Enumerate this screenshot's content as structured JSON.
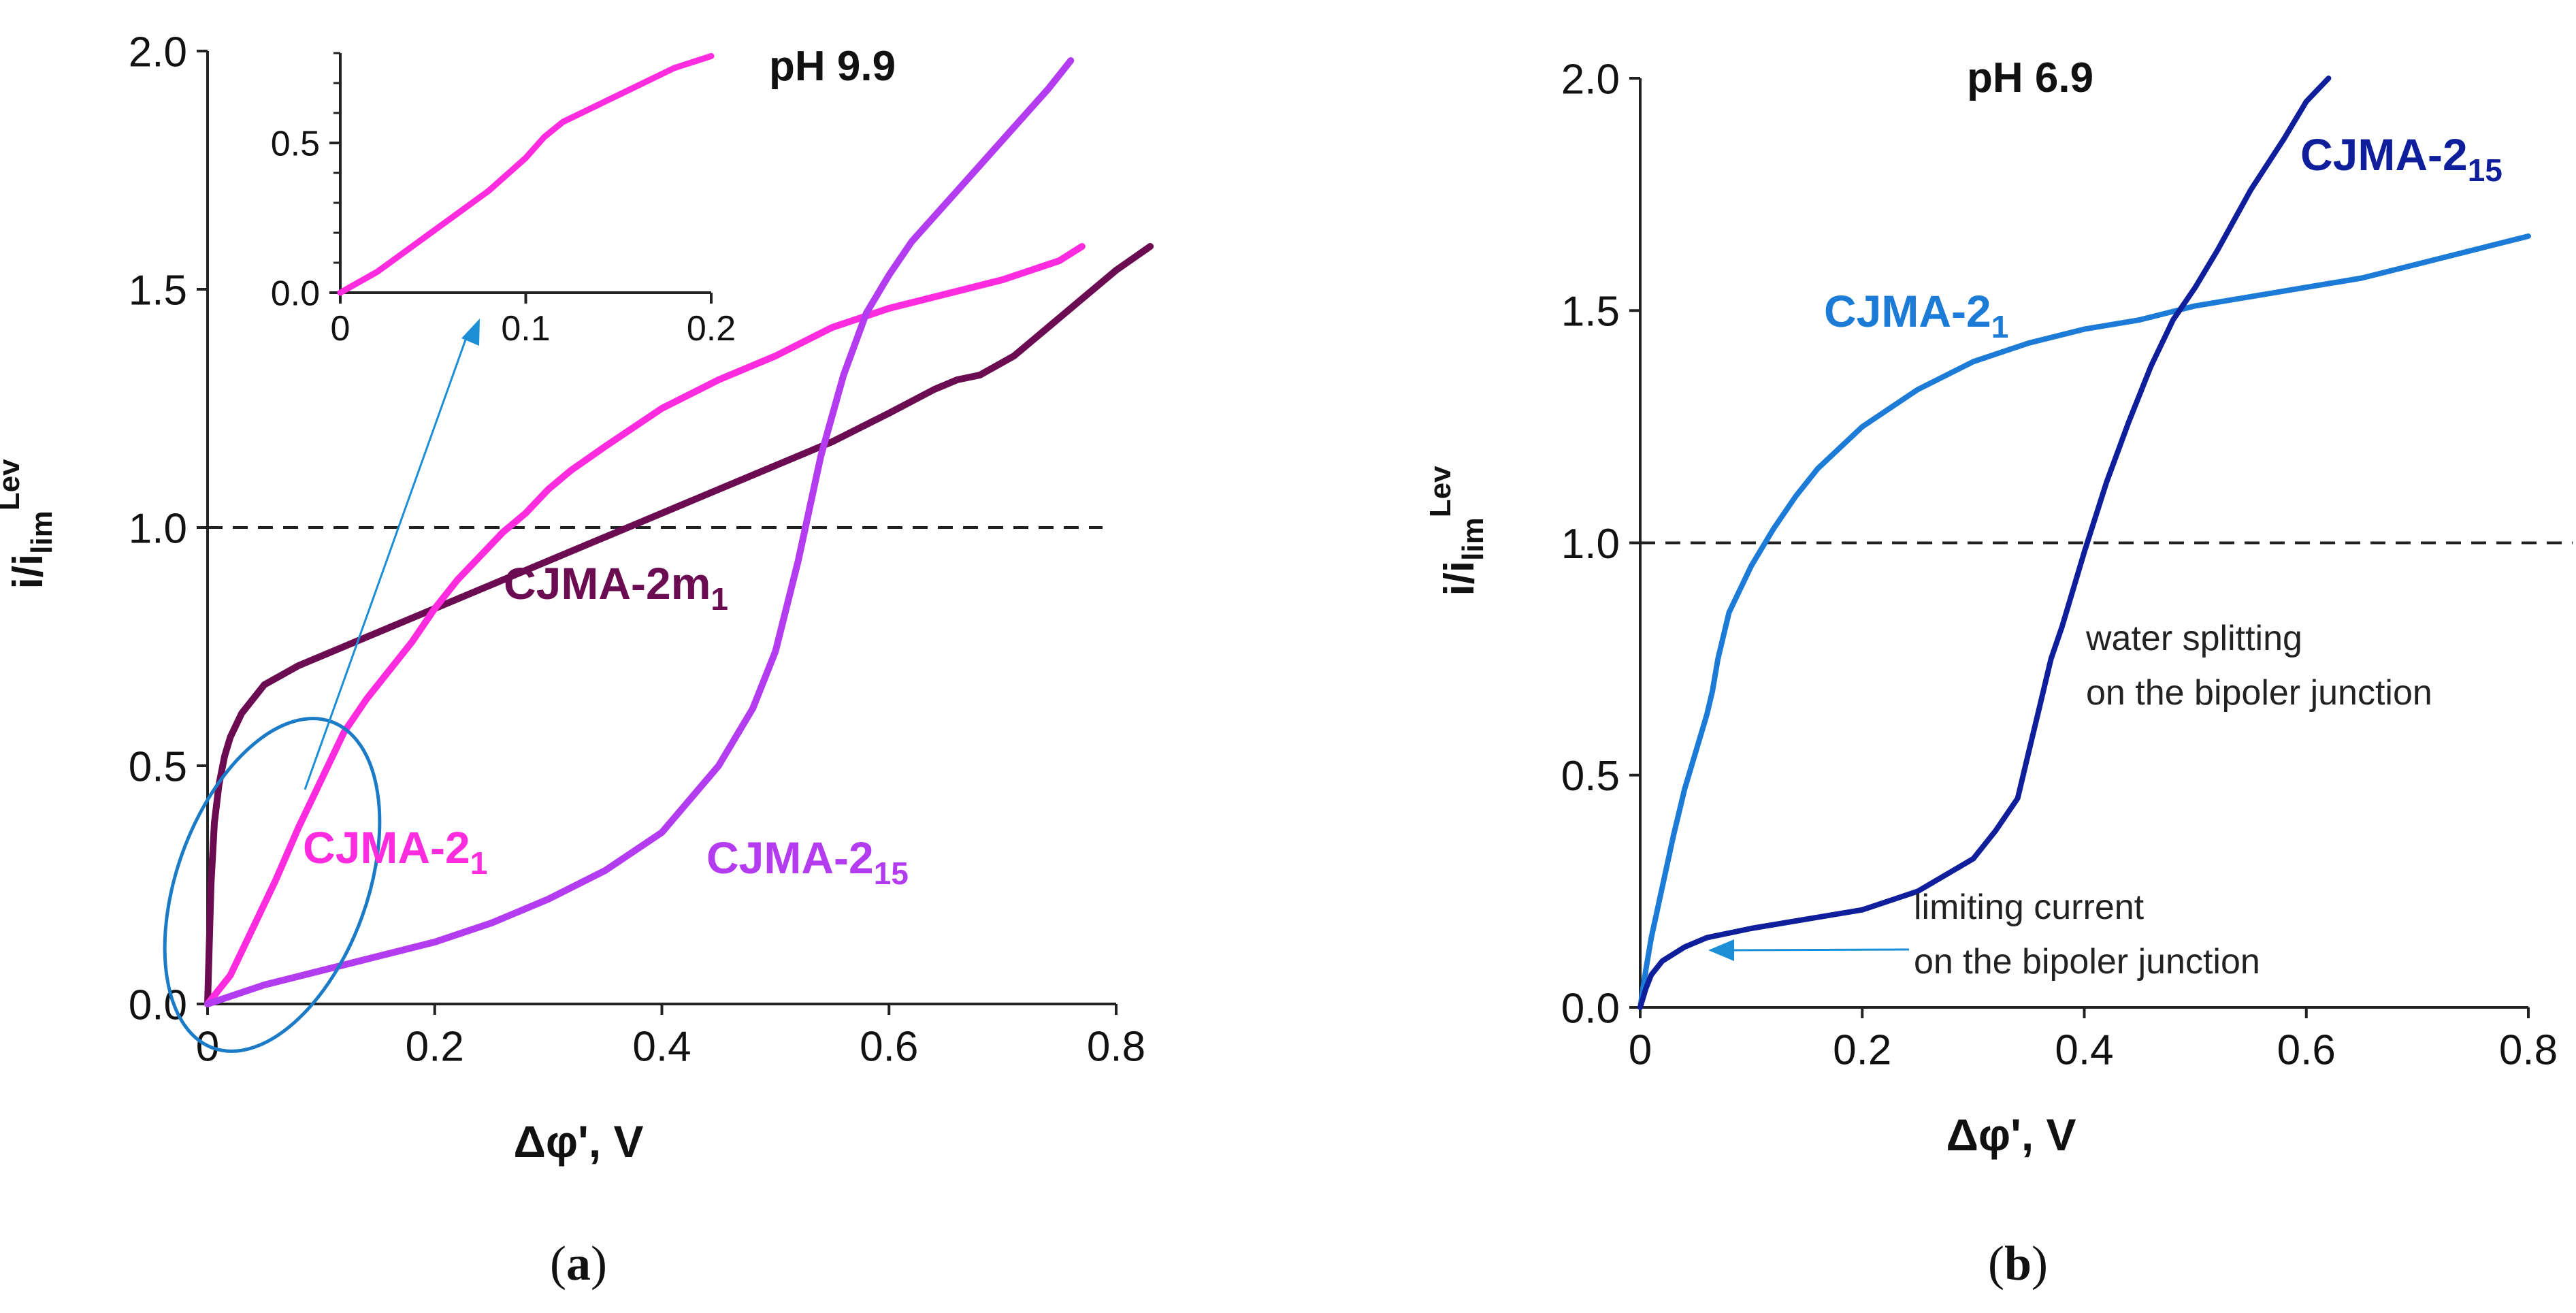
{
  "chart_data": [
    {
      "panel": "a",
      "type": "line",
      "title": "pH 9.9",
      "xlabel": "Δφ', V",
      "ylabel": {
        "main": "i/i",
        "sub": "lim",
        "sup": "Lev"
      },
      "xlim": [
        0,
        0.8
      ],
      "ylim": [
        0,
        2.0
      ],
      "xticks": [
        "0",
        "0.2",
        "0.4",
        "0.6",
        "0.8"
      ],
      "yticks": [
        "0.0",
        "0.5",
        "1.0",
        "1.5",
        "2.0"
      ],
      "reference_line": {
        "y": 1.0,
        "style": "dashed"
      },
      "panel_label": {
        "open": "(",
        "letter": "a",
        "close": ")"
      },
      "series": [
        {
          "name": "CJMA-2m",
          "name_sub": "1",
          "color": "#6b0b52",
          "x": [
            0,
            0.003,
            0.006,
            0.01,
            0.015,
            0.02,
            0.03,
            0.05,
            0.08,
            0.1,
            0.15,
            0.2,
            0.25,
            0.3,
            0.35,
            0.4,
            0.45,
            0.5,
            0.55,
            0.6,
            0.64,
            0.66,
            0.68,
            0.71,
            0.74,
            0.77,
            0.8,
            0.83
          ],
          "y": [
            0.0,
            0.25,
            0.38,
            0.46,
            0.52,
            0.56,
            0.61,
            0.67,
            0.71,
            0.73,
            0.78,
            0.83,
            0.88,
            0.93,
            0.98,
            1.03,
            1.08,
            1.13,
            1.18,
            1.24,
            1.29,
            1.31,
            1.32,
            1.36,
            1.42,
            1.48,
            1.54,
            1.59
          ]
        },
        {
          "name": "CJMA-2",
          "name_sub": "1",
          "color": "#ff2bdf",
          "x": [
            0,
            0.02,
            0.04,
            0.06,
            0.08,
            0.1,
            0.12,
            0.14,
            0.16,
            0.18,
            0.2,
            0.22,
            0.24,
            0.26,
            0.28,
            0.3,
            0.32,
            0.35,
            0.4,
            0.45,
            0.5,
            0.55,
            0.6,
            0.65,
            0.7,
            0.75,
            0.77
          ],
          "y": [
            0.0,
            0.06,
            0.16,
            0.26,
            0.37,
            0.47,
            0.57,
            0.64,
            0.7,
            0.76,
            0.83,
            0.89,
            0.94,
            0.99,
            1.03,
            1.08,
            1.12,
            1.17,
            1.25,
            1.31,
            1.36,
            1.42,
            1.46,
            1.49,
            1.52,
            1.56,
            1.59
          ]
        },
        {
          "name": "CJMA-2",
          "name_sub": "15",
          "color": "#b43cf0",
          "x": [
            0,
            0.05,
            0.1,
            0.15,
            0.2,
            0.25,
            0.3,
            0.35,
            0.4,
            0.45,
            0.48,
            0.5,
            0.52,
            0.54,
            0.56,
            0.58,
            0.6,
            0.62,
            0.65,
            0.68,
            0.71,
            0.74,
            0.76
          ],
          "y": [
            0.0,
            0.04,
            0.07,
            0.1,
            0.13,
            0.17,
            0.22,
            0.28,
            0.36,
            0.5,
            0.62,
            0.74,
            0.93,
            1.15,
            1.32,
            1.45,
            1.53,
            1.6,
            1.68,
            1.76,
            1.84,
            1.92,
            1.98
          ]
        }
      ],
      "inset": {
        "xlim": [
          0,
          0.2
        ],
        "ylim": [
          0,
          0.8
        ],
        "xticks": [
          "0",
          "0.1",
          "0.2"
        ],
        "yticks": [
          "0.0",
          "0.5"
        ],
        "series": [
          {
            "name": "CJMA-2",
            "name_sub": "1",
            "color": "#ff2bdf",
            "x": [
              0,
              0.02,
              0.04,
              0.06,
              0.08,
              0.1,
              0.11,
              0.12,
              0.14,
              0.16,
              0.18,
              0.2
            ],
            "y": [
              0.0,
              0.07,
              0.16,
              0.25,
              0.34,
              0.45,
              0.52,
              0.57,
              0.63,
              0.69,
              0.75,
              0.79
            ]
          }
        ]
      }
    },
    {
      "panel": "b",
      "type": "line",
      "title": "pH 6.9",
      "xlabel": "Δφ', V",
      "ylabel": {
        "main": "i/i",
        "sub": "lim",
        "sup": "Lev"
      },
      "xlim": [
        0,
        0.8
      ],
      "ylim": [
        0,
        2.0
      ],
      "xticks": [
        "0",
        "0.2",
        "0.4",
        "0.6",
        "0.8"
      ],
      "yticks": [
        "0.0",
        "0.5",
        "1.0",
        "1.5",
        "2.0"
      ],
      "reference_line": {
        "y": 1.0,
        "style": "dashed"
      },
      "panel_label": {
        "open": "(",
        "letter": "b",
        "close": ")"
      },
      "series": [
        {
          "name": "CJMA-2",
          "name_sub": "1",
          "color": "#1b7bd6",
          "x": [
            0,
            0.005,
            0.01,
            0.02,
            0.03,
            0.04,
            0.06,
            0.065,
            0.07,
            0.08,
            0.1,
            0.12,
            0.14,
            0.16,
            0.2,
            0.25,
            0.3,
            0.35,
            0.4,
            0.45,
            0.5,
            0.55,
            0.6,
            0.65,
            0.7,
            0.75,
            0.8
          ],
          "y": [
            0.0,
            0.08,
            0.15,
            0.26,
            0.37,
            0.47,
            0.63,
            0.68,
            0.75,
            0.85,
            0.95,
            1.03,
            1.1,
            1.16,
            1.25,
            1.33,
            1.39,
            1.43,
            1.46,
            1.48,
            1.51,
            1.53,
            1.55,
            1.57,
            1.6,
            1.63,
            1.66
          ]
        },
        {
          "name": "CJMA-2",
          "name_sub": "15",
          "color": "#0f1f9c",
          "x": [
            0,
            0.005,
            0.01,
            0.02,
            0.04,
            0.06,
            0.1,
            0.15,
            0.2,
            0.25,
            0.3,
            0.32,
            0.34,
            0.35,
            0.36,
            0.37,
            0.38,
            0.4,
            0.42,
            0.44,
            0.46,
            0.48,
            0.5,
            0.52,
            0.55,
            0.58,
            0.6,
            0.62
          ],
          "y": [
            0.0,
            0.04,
            0.07,
            0.1,
            0.13,
            0.15,
            0.17,
            0.19,
            0.21,
            0.25,
            0.32,
            0.38,
            0.45,
            0.55,
            0.65,
            0.75,
            0.82,
            0.98,
            1.13,
            1.26,
            1.38,
            1.48,
            1.55,
            1.63,
            1.76,
            1.87,
            1.95,
            2.0
          ]
        }
      ],
      "annotations": [
        {
          "lines": [
            "water splitting",
            "on the bipoler junction"
          ]
        },
        {
          "lines": [
            "limiting current",
            "on the bipoler junction"
          ]
        }
      ]
    }
  ]
}
